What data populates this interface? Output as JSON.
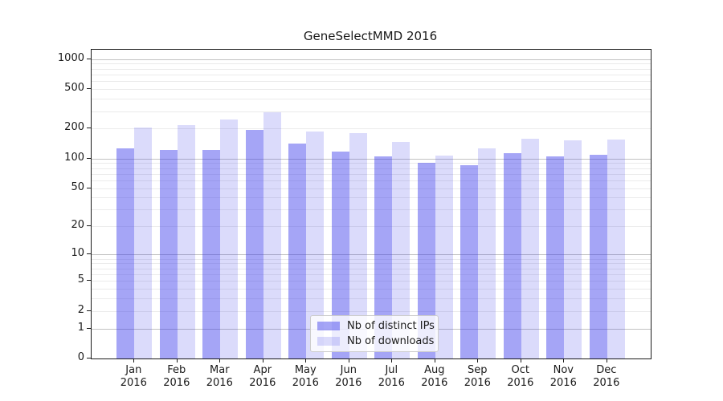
{
  "figure": {
    "title": "GeneSelectMMD 2016",
    "background": "#ffffff"
  },
  "chart_data": {
    "type": "bar",
    "title": "GeneSelectMMD 2016",
    "yscale": "log1p",
    "ylim": [
      0,
      1240
    ],
    "grid": "horizontal major and minor gridlines, drawn under translucent bars",
    "legend_position": "lower center",
    "months": [
      "Jan",
      "Feb",
      "Mar",
      "Apr",
      "May",
      "Jun",
      "Jul",
      "Aug",
      "Sep",
      "Oct",
      "Nov",
      "Dec"
    ],
    "year": "2016",
    "categories": [
      "Jan 2016",
      "Feb 2016",
      "Mar 2016",
      "Apr 2016",
      "May 2016",
      "Jun 2016",
      "Jul 2016",
      "Aug 2016",
      "Sep 2016",
      "Oct 2016",
      "Nov 2016",
      "Dec 2016"
    ],
    "y_ticks": [
      1000,
      500,
      200,
      100,
      50,
      20,
      10,
      5,
      2,
      1,
      0
    ],
    "series": [
      {
        "name": "Nb of distinct IPs",
        "color": "rgba(55,55,235,0.45)",
        "solid_hex": "#a5a5f6",
        "values": [
          127,
          122,
          121,
          195,
          142,
          117,
          106,
          90,
          85,
          113,
          106,
          110
        ]
      },
      {
        "name": "Nb of downloads",
        "color": "rgba(55,55,235,0.18)",
        "solid_hex": "#dadafb",
        "values": [
          206,
          217,
          246,
          295,
          188,
          181,
          146,
          108,
          127,
          159,
          152,
          155
        ]
      }
    ],
    "colors": {
      "grid_major": "#c2c2c2",
      "grid_minor": "#ebebeb",
      "axis": "#1a1a1a",
      "text": "#1a1a1a"
    }
  }
}
